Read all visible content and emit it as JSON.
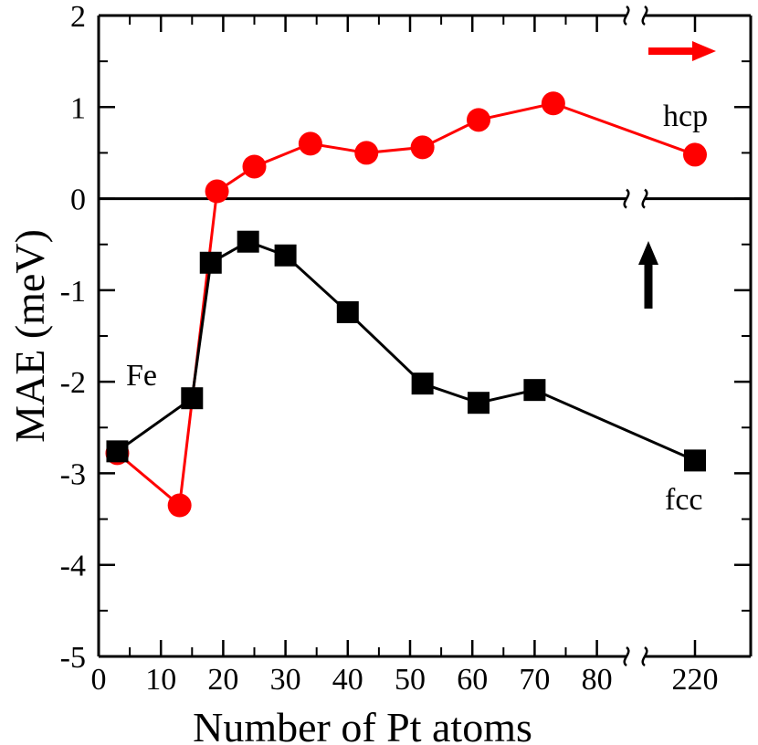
{
  "chart_data": {
    "type": "line",
    "title": "",
    "xlabel": "Number of Pt atoms",
    "ylabel": "MAE (meV)",
    "ylim": [
      -5,
      2
    ],
    "xlim_main": [
      0,
      85
    ],
    "x_break": true,
    "x_tail_range": [
      210,
      230
    ],
    "x_ticks": [
      0,
      10,
      20,
      30,
      40,
      50,
      60,
      70,
      80,
      220
    ],
    "x_tick_labels": [
      "0",
      "10",
      "20",
      "30",
      "40",
      "50",
      "60",
      "70",
      "80",
      "220"
    ],
    "y_ticks": [
      -5,
      -4,
      -3,
      -2,
      -1,
      0,
      1,
      2
    ],
    "y_tick_labels": [
      "-5",
      "-4",
      "-3",
      "-2",
      "-1",
      "0",
      "1",
      "2"
    ],
    "series": [
      {
        "name": "hcp",
        "color": "#ff0000",
        "marker": "circle",
        "x": [
          3,
          13,
          19,
          25,
          34,
          43,
          52,
          61,
          73,
          220
        ],
        "y": [
          -2.78,
          -3.35,
          0.08,
          0.35,
          0.6,
          0.5,
          0.56,
          0.86,
          1.04,
          0.48
        ]
      },
      {
        "name": "fcc",
        "color": "#000000",
        "marker": "square",
        "x": [
          3,
          15,
          18,
          24,
          30,
          40,
          52,
          61,
          70,
          220
        ],
        "y": [
          -2.76,
          -2.18,
          -0.7,
          -0.47,
          -0.62,
          -1.24,
          -2.02,
          -2.23,
          -2.09,
          -2.86
        ]
      }
    ],
    "annotations": [
      {
        "text": "hcp"
      },
      {
        "text": "fcc"
      },
      {
        "text": "Fe"
      }
    ],
    "arrows": [
      {
        "name": "red-arrow",
        "direction": "right",
        "color": "#ff0000"
      },
      {
        "name": "black-arrow",
        "direction": "up",
        "color": "#000000"
      }
    ]
  }
}
